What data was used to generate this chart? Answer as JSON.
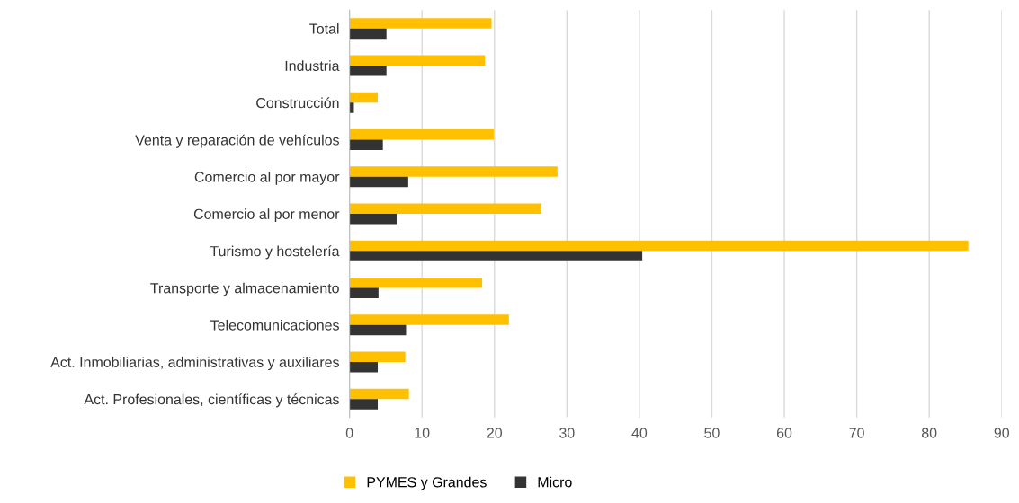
{
  "chart_data": {
    "type": "bar",
    "orientation": "horizontal",
    "categories": [
      "Total",
      "Industria",
      "Construcción",
      "Venta y reparación de vehículos",
      "Comercio al por mayor",
      "Comercio al por menor",
      "Turismo y hostelería",
      "Transporte y almacenamiento",
      "Telecomunicaciones",
      "Act. Inmobiliarias, administrativas y auxiliares",
      "Act. Profesionales, científicas y técnicas"
    ],
    "series": [
      {
        "name": "PYMES y Grandes",
        "color": "#ffc000",
        "values": [
          19.6,
          18.7,
          3.9,
          19.9,
          28.7,
          26.5,
          85.4,
          18.3,
          22.0,
          7.7,
          8.2
        ]
      },
      {
        "name": "Micro",
        "color": "#333333",
        "values": [
          5.1,
          5.1,
          0.6,
          4.6,
          8.1,
          6.5,
          40.4,
          4.0,
          7.8,
          3.9,
          3.9
        ]
      }
    ],
    "xlim": [
      0,
      90
    ],
    "xticks": [
      0,
      10,
      20,
      30,
      40,
      50,
      60,
      70,
      80,
      90
    ],
    "grid": "x",
    "legend": "bottom"
  }
}
